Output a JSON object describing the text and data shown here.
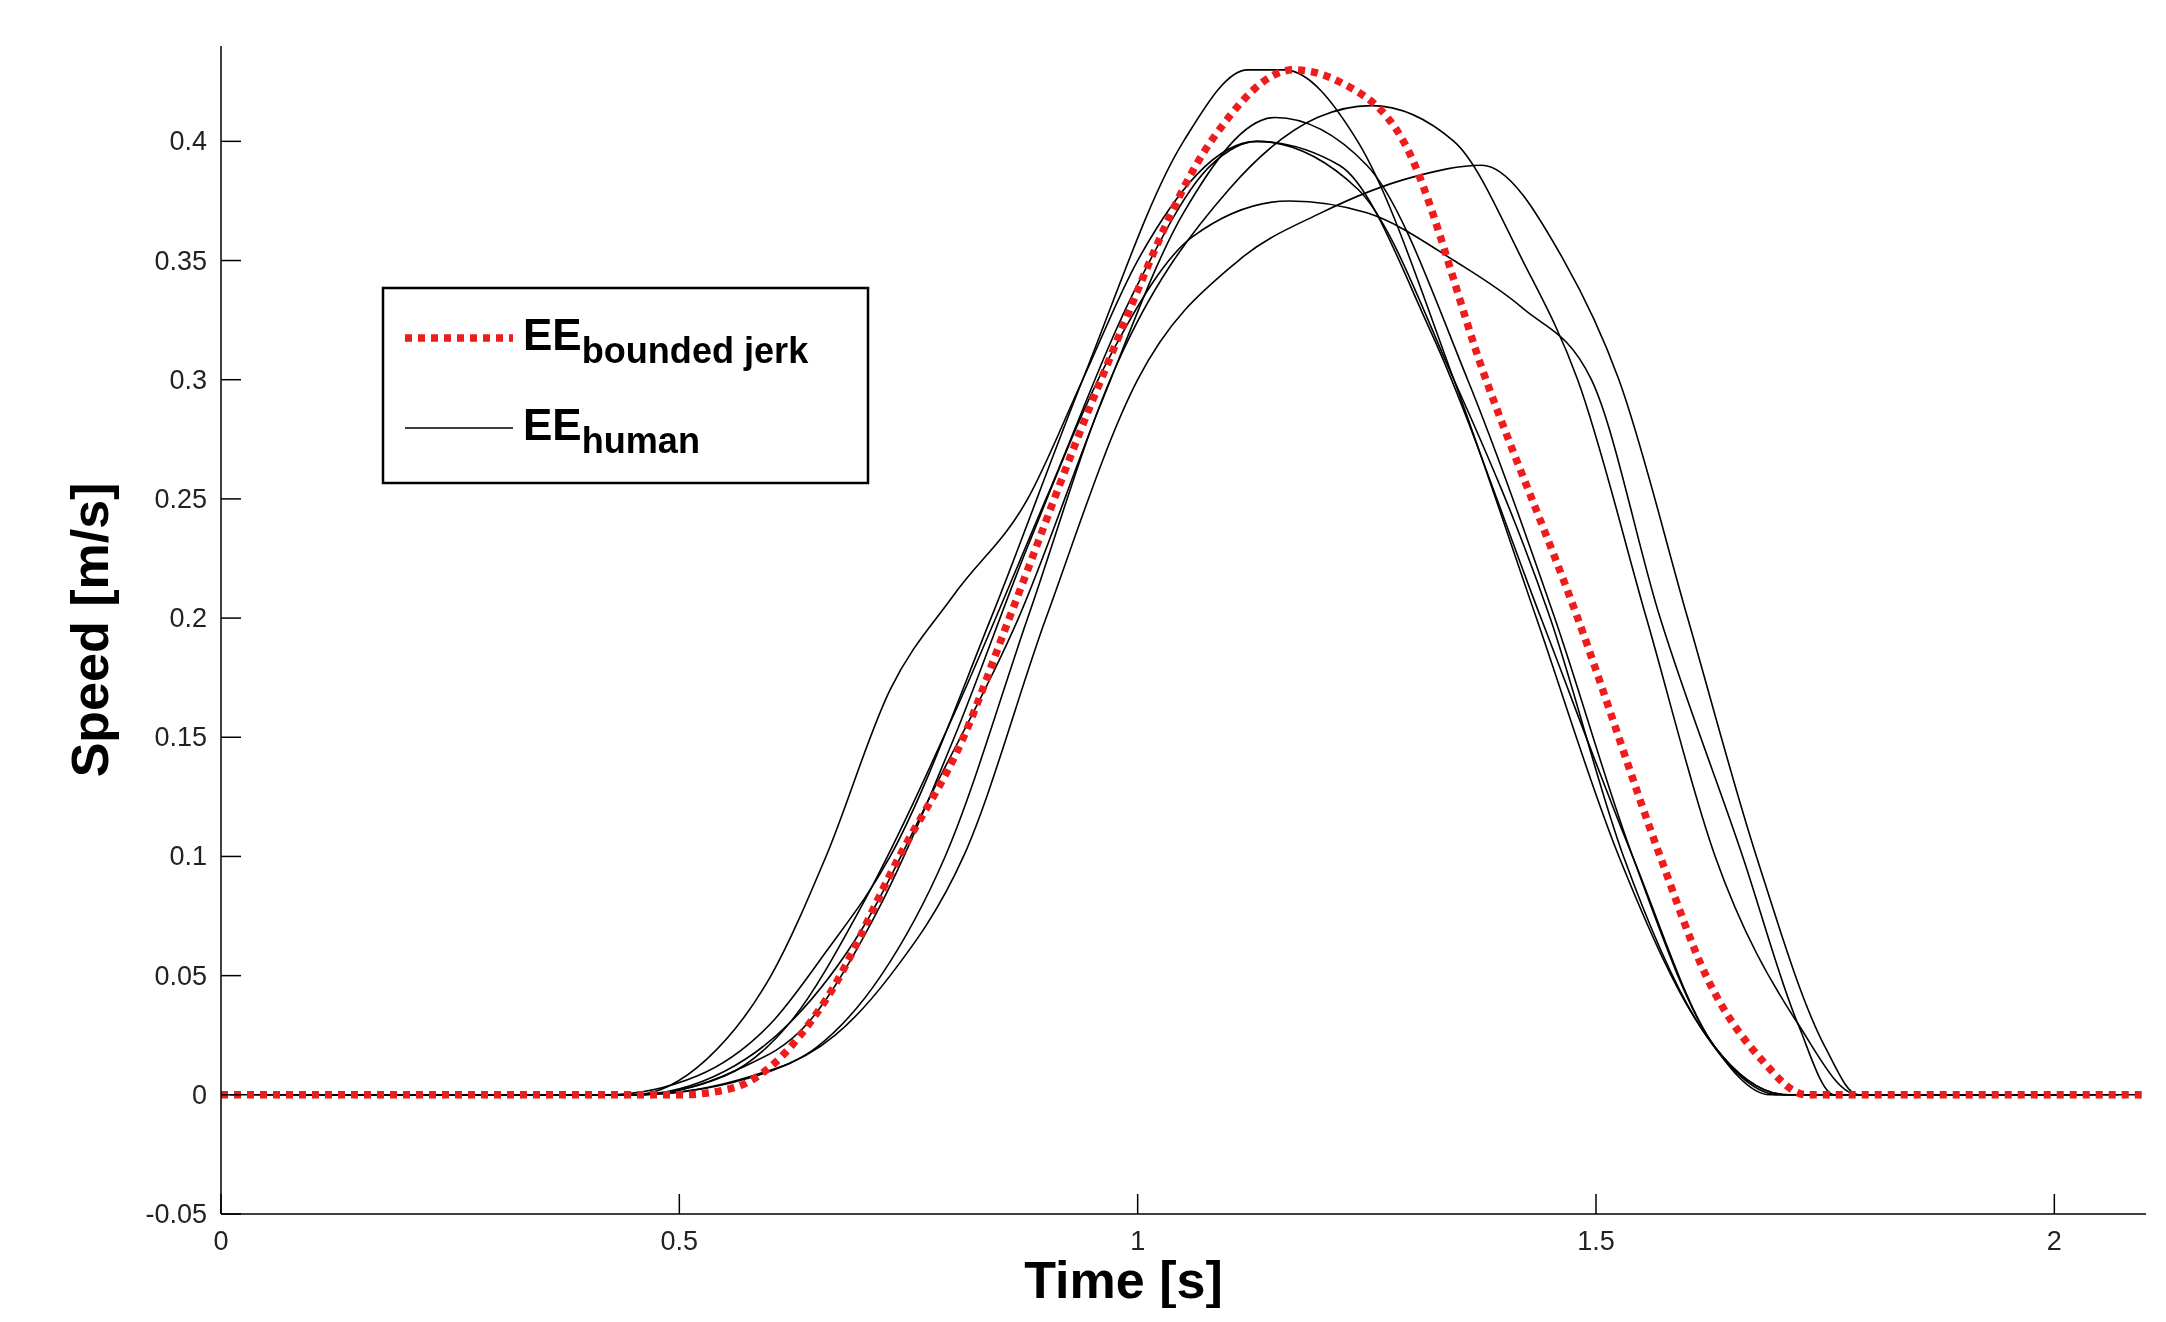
{
  "chart_data": {
    "type": "line",
    "xlabel": "Time [s]",
    "ylabel": "Speed [m/s]",
    "xlim": [
      0,
      2.1
    ],
    "ylim": [
      -0.05,
      0.44
    ],
    "xticks": [
      0,
      0.5,
      1,
      1.5,
      2
    ],
    "yticks": [
      -0.05,
      0,
      0.05,
      0.1,
      0.15,
      0.2,
      0.25,
      0.3,
      0.35,
      0.4
    ],
    "legend": "top left",
    "grid": false,
    "series": [
      {
        "name": "EE$_{bounded jerk}$",
        "color": "#ee1c1c",
        "line_style": "dotted",
        "x": [
          0,
          0.5,
          0.56,
          0.6,
          0.66,
          0.74,
          0.81,
          0.86,
          0.96,
          1.08,
          1.17,
          1.22,
          1.29,
          1.38,
          1.48,
          1.57,
          1.62,
          1.68,
          1.73,
          2.1
        ],
        "values": [
          0,
          0,
          0.003,
          0.012,
          0.04,
          0.1,
          0.15,
          0.2,
          0.3,
          0.4,
          0.43,
          0.425,
          0.4,
          0.3,
          0.2,
          0.1,
          0.05,
          0.015,
          0,
          0
        ]
      },
      {
        "name": "EE$_{human}$",
        "color": "#000000",
        "line_style": "solid",
        "x": [
          0.01,
          0.42,
          0.52,
          0.6,
          0.66,
          0.73,
          0.84,
          0.94,
          1.05,
          1.12,
          1.16,
          1.24,
          1.345,
          1.435,
          1.525,
          1.62,
          1.69,
          2.09
        ],
        "values": [
          0,
          0,
          0.008,
          0.03,
          0.06,
          0.1,
          0.2,
          0.3,
          0.4,
          0.43,
          0.43,
          0.4,
          0.3,
          0.2,
          0.1,
          0.025,
          0,
          0
        ]
      },
      {
        "color": "#000000",
        "line_style": "solid",
        "x": [
          0.03,
          0.45,
          0.53,
          0.6,
          0.66,
          0.73,
          0.8,
          0.88,
          0.94,
          1.0,
          1.13,
          1.24,
          1.345,
          1.45,
          1.53,
          1.62,
          1.7,
          2.07
        ],
        "values": [
          0,
          0,
          0.015,
          0.05,
          0.1,
          0.17,
          0.21,
          0.25,
          0.3,
          0.35,
          0.4,
          0.38,
          0.3,
          0.2,
          0.1,
          0.025,
          0,
          0
        ]
      },
      {
        "color": "#000000",
        "line_style": "solid",
        "x": [
          0.05,
          0.45,
          0.55,
          0.62,
          0.7,
          0.78,
          0.87,
          0.96,
          1.05,
          1.15,
          1.25,
          1.36,
          1.455,
          1.54,
          1.63,
          1.71,
          2.05
        ],
        "values": [
          0,
          0,
          0.01,
          0.03,
          0.07,
          0.13,
          0.2,
          0.29,
          0.37,
          0.41,
          0.39,
          0.3,
          0.2,
          0.1,
          0.02,
          0,
          0
        ]
      },
      {
        "color": "#000000",
        "line_style": "solid",
        "x": [
          0.07,
          0.45,
          0.55,
          0.62,
          0.7,
          0.8,
          0.9,
          1.0,
          1.08,
          1.13,
          1.22,
          1.32,
          1.44,
          1.54,
          1.63,
          1.71,
          2.03
        ],
        "values": [
          0,
          0,
          0.008,
          0.03,
          0.08,
          0.16,
          0.25,
          0.34,
          0.39,
          0.4,
          0.39,
          0.32,
          0.2,
          0.1,
          0.02,
          0,
          0
        ]
      },
      {
        "color": "#000000",
        "line_style": "solid",
        "x": [
          0.09,
          0.45,
          0.56,
          0.64,
          0.72,
          0.8,
          0.88,
          0.97,
          1.06,
          1.166,
          1.25,
          1.345,
          1.42,
          1.495,
          1.57,
          1.66,
          1.72,
          1.76,
          2.01
        ],
        "values": [
          0,
          0,
          0.01,
          0.03,
          0.08,
          0.15,
          0.23,
          0.31,
          0.36,
          0.375,
          0.37,
          0.35,
          0.33,
          0.3,
          0.2,
          0.1,
          0.03,
          0,
          0
        ]
      },
      {
        "color": "#000000",
        "line_style": "solid",
        "x": [
          0.11,
          0.45,
          0.6,
          0.67,
          0.73,
          0.81,
          0.9,
          1.0,
          1.11,
          1.2,
          1.3,
          1.375,
          1.465,
          1.525,
          1.6,
          1.675,
          1.75,
          1.786,
          1.99
        ],
        "values": [
          0,
          0,
          0.01,
          0.025,
          0.05,
          0.1,
          0.2,
          0.3,
          0.35,
          0.37,
          0.385,
          0.39,
          0.35,
          0.3,
          0.2,
          0.1,
          0.02,
          0,
          0
        ]
      },
      {
        "color": "#000000",
        "line_style": "solid",
        "x": [
          0.13,
          0.45,
          0.58,
          0.65,
          0.72,
          0.79,
          0.88,
          0.97,
          1.1,
          1.196,
          1.255,
          1.345,
          1.42,
          1.48,
          1.555,
          1.63,
          1.72,
          1.786,
          1.97
        ],
        "values": [
          0,
          0,
          0.008,
          0.02,
          0.05,
          0.1,
          0.2,
          0.3,
          0.38,
          0.41,
          0.415,
          0.4,
          0.35,
          0.3,
          0.2,
          0.1,
          0.03,
          0,
          0
        ]
      }
    ]
  }
}
